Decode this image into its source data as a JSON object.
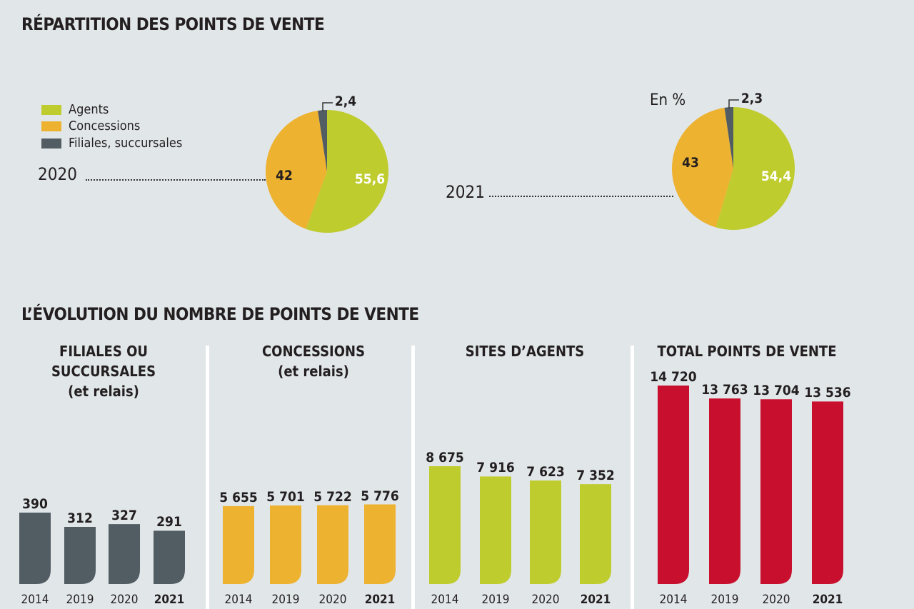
{
  "title1": "RÉPARTITION DES POINTS DE VENTE",
  "title2": "L’ÉVOLUTION DU NOMBRE DE POINTS DE VENTE",
  "unit": "En %",
  "colors": {
    "agents": "#bfcc2e",
    "concessions": "#edb230",
    "filiales": "#525c63",
    "total": "#c8102e",
    "background": "#e1e6e9"
  },
  "chart_data": [
    {
      "type": "pie",
      "label": "2020",
      "legend": [
        "Agents",
        "Concessions",
        "Filiales, succursales"
      ],
      "values": [
        55.6,
        42,
        2.4
      ],
      "value_labels": [
        "55,6",
        "42",
        "2,4"
      ],
      "legend_placement": "left"
    },
    {
      "type": "pie",
      "label": "2021",
      "values": [
        54.4,
        43,
        2.3
      ],
      "value_labels": [
        "54,4",
        "43",
        "2,3"
      ]
    },
    {
      "type": "bar",
      "title": "FILIALES OU SUCCURSALES (et relais)",
      "title_lines": [
        "FILIALES OU",
        "SUCCURSALES",
        "(et relais)"
      ],
      "categories": [
        "2014",
        "2019",
        "2020",
        "2021"
      ],
      "values": [
        390,
        312,
        327,
        291
      ],
      "value_labels": [
        "390",
        "312",
        "327",
        "291"
      ],
      "color": "#525c63"
    },
    {
      "type": "bar",
      "title": "CONCESSIONS (et relais)",
      "title_lines": [
        "CONCESSIONS",
        "(et relais)"
      ],
      "categories": [
        "2014",
        "2019",
        "2020",
        "2021"
      ],
      "values": [
        5655,
        5701,
        5722,
        5776
      ],
      "value_labels": [
        "5 655",
        "5 701",
        "5 722",
        "5 776"
      ],
      "color": "#edb230"
    },
    {
      "type": "bar",
      "title": "SITES D’AGENTS",
      "title_lines": [
        "SITES D’AGENTS"
      ],
      "categories": [
        "2014",
        "2019",
        "2020",
        "2021"
      ],
      "values": [
        8675,
        7916,
        7623,
        7352
      ],
      "value_labels": [
        "8 675",
        "7 916",
        "7 623",
        "7 352"
      ],
      "color": "#bfcc2e"
    },
    {
      "type": "bar",
      "title": "TOTAL POINTS DE VENTE",
      "title_lines": [
        "TOTAL POINTS DE VENTE"
      ],
      "categories": [
        "2014",
        "2019",
        "2020",
        "2021"
      ],
      "values": [
        14720,
        13763,
        13704,
        13536
      ],
      "value_labels": [
        "14 720",
        "13 763",
        "13 704",
        "13 536"
      ],
      "color": "#c8102e"
    }
  ]
}
